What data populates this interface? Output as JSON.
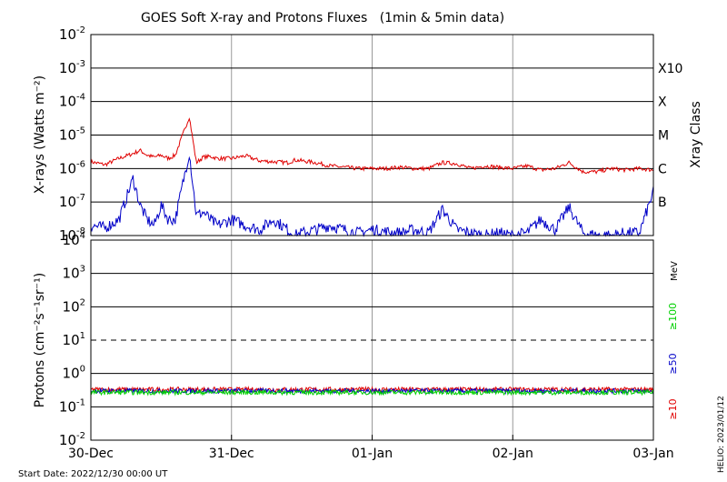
{
  "chart_data": [
    {
      "type": "line",
      "title": "GOES Soft X-ray and Protons Fluxes   (1min & 5min data)",
      "ylabel": "X-rays (Watts m⁻²)",
      "yscale": "log",
      "ylim": [
        1e-08,
        0.01
      ],
      "y_ticks": [
        {
          "base": "10",
          "exp": "-2"
        },
        {
          "base": "10",
          "exp": "-3"
        },
        {
          "base": "10",
          "exp": "-4"
        },
        {
          "base": "10",
          "exp": "-5"
        },
        {
          "base": "10",
          "exp": "-6"
        },
        {
          "base": "10",
          "exp": "-7"
        },
        {
          "base": "10",
          "exp": "-8"
        }
      ],
      "right_axis_title": "Xray Class",
      "class_labels": [
        {
          "label": "X10",
          "value": 0.001
        },
        {
          "label": "X",
          "value": 0.0001
        },
        {
          "label": "M",
          "value": 1e-05
        },
        {
          "label": "C",
          "value": 1e-06
        },
        {
          "label": "B",
          "value": 1e-07
        }
      ],
      "xlim": [
        "2022-12-30",
        "2023-01-03"
      ],
      "series": [
        {
          "color": "#e00000",
          "x": [
            0,
            0.1,
            0.2,
            0.3,
            0.35,
            0.4,
            0.45,
            0.5,
            0.55,
            0.6,
            0.7,
            0.75,
            0.8,
            0.85,
            0.9,
            1.0,
            1.1,
            1.2,
            1.3,
            1.4,
            1.45,
            1.5,
            1.6,
            1.7,
            1.8,
            1.9,
            2.0,
            2.1,
            2.2,
            2.3,
            2.4,
            2.5,
            2.6,
            2.7,
            2.8,
            2.9,
            3.0,
            3.1,
            3.2,
            3.3,
            3.4,
            3.5,
            3.6,
            3.7,
            3.8,
            3.9,
            4.0
          ],
          "y": [
            1.6e-06,
            1.3e-06,
            2e-06,
            2.8e-06,
            3.5e-06,
            2.5e-06,
            2.2e-06,
            2.5e-06,
            2e-06,
            2.5e-06,
            3.5e-05,
            1.5e-06,
            2.2e-06,
            2.3e-06,
            2e-06,
            2e-06,
            2.4e-06,
            1.7e-06,
            1.6e-06,
            1.5e-06,
            1.8e-06,
            1.7e-06,
            1.5e-06,
            1.2e-06,
            1.1e-06,
            1e-06,
            1e-06,
            1e-06,
            1.1e-06,
            1e-06,
            1e-06,
            1.5e-06,
            1.4e-06,
            1e-06,
            1.2e-06,
            1.1e-06,
            1e-06,
            1.2e-06,
            9e-07,
            1e-06,
            1.5e-06,
            8e-07,
            8e-07,
            1e-06,
            9e-07,
            1e-06,
            9e-07
          ]
        },
        {
          "color": "#0000c8",
          "x": [
            0,
            0.1,
            0.2,
            0.3,
            0.35,
            0.4,
            0.45,
            0.5,
            0.55,
            0.6,
            0.7,
            0.75,
            0.8,
            0.85,
            0.9,
            1.0,
            1.1,
            1.2,
            1.3,
            1.4,
            1.45,
            1.5,
            1.6,
            1.7,
            1.8,
            1.9,
            2.0,
            2.1,
            2.2,
            2.3,
            2.4,
            2.5,
            2.6,
            2.7,
            2.8,
            2.9,
            3.0,
            3.1,
            3.2,
            3.3,
            3.4,
            3.5,
            3.6,
            3.7,
            3.8,
            3.9,
            4.0
          ],
          "y": [
            2e-08,
            1.7e-08,
            3e-08,
            5e-07,
            8e-08,
            3e-08,
            2e-08,
            8e-08,
            3e-08,
            3e-08,
            3e-06,
            4e-08,
            5e-08,
            3e-08,
            2e-08,
            3e-08,
            2e-08,
            1.5e-08,
            3e-08,
            1.5e-08,
            1e-08,
            1.2e-08,
            1.5e-08,
            2e-08,
            1.5e-08,
            1.2e-08,
            1.5e-08,
            1.3e-08,
            1.2e-08,
            1.5e-08,
            1.2e-08,
            6e-08,
            1.5e-08,
            1.2e-08,
            1e-08,
            1.2e-08,
            1e-08,
            1.2e-08,
            3e-08,
            1.5e-08,
            7e-08,
            1.2e-08,
            1e-08,
            1e-08,
            1.2e-08,
            1.2e-08,
            2e-07
          ]
        }
      ]
    },
    {
      "type": "line",
      "ylabel": "Protons (cm⁻²s⁻¹sr⁻¹)",
      "yscale": "log",
      "ylim": [
        0.01,
        10000
      ],
      "y_ticks": [
        {
          "base": "10",
          "exp": "4"
        },
        {
          "base": "10",
          "exp": "3"
        },
        {
          "base": "10",
          "exp": "2"
        },
        {
          "base": "10",
          "exp": "1"
        },
        {
          "base": "10",
          "exp": "0"
        },
        {
          "base": "10",
          "exp": "-1"
        },
        {
          "base": "10",
          "exp": "-2"
        }
      ],
      "threshold_line": 10,
      "unit_label": "MeV",
      "xlabel": "Start Date: 2022/12/30 00:00 UT",
      "x_ticks": [
        "30-Dec",
        "31-Dec",
        "01-Jan",
        "02-Jan",
        "03-Jan"
      ],
      "xlim": [
        "2022-12-30",
        "2023-01-03"
      ],
      "series": [
        {
          "name": "≥10",
          "color": "#e00000",
          "x": [
            0,
            1,
            2,
            3,
            4
          ],
          "y": [
            0.33,
            0.33,
            0.33,
            0.33,
            0.33
          ]
        },
        {
          "name": "≥50",
          "color": "#0000c8",
          "x": [
            0,
            1,
            2,
            3,
            4
          ],
          "y": [
            0.3,
            0.3,
            0.3,
            0.3,
            0.3
          ]
        },
        {
          "name": "≥100",
          "color": "#00d000",
          "x": [
            0,
            1,
            2,
            3,
            4
          ],
          "y": [
            0.27,
            0.27,
            0.27,
            0.27,
            0.27
          ]
        }
      ]
    }
  ],
  "credit": "HELIO: 2023/01/12"
}
